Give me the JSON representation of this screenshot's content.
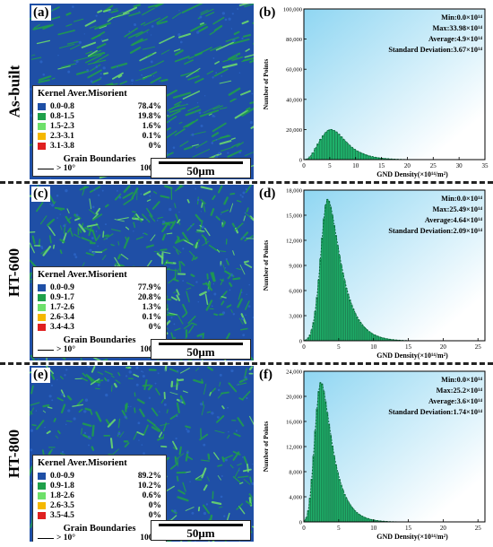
{
  "rows": [
    {
      "label": "As-built",
      "map_letter": "(a)",
      "chart_letter": "(b)",
      "legend": {
        "title": "Kernel Aver.Misorient",
        "items": [
          {
            "range": "0.0-0.8",
            "pct": "78.4%",
            "color": "#1f4fa6"
          },
          {
            "range": "0.8-1.5",
            "pct": "19.8%",
            "color": "#1fa04a"
          },
          {
            "range": "1.5-2.3",
            "pct": "1.6%",
            "color": "#6ee06a"
          },
          {
            "range": "2.3-3.1",
            "pct": "0.1%",
            "color": "#f5b800"
          },
          {
            "range": "3.1-3.8",
            "pct": "0%",
            "color": "#e02020"
          }
        ],
        "gb_title": "Grain Boundaries",
        "gb_item": "> 10°",
        "gb_pct": "100%"
      },
      "scale_label": "50μm",
      "stats": [
        "Min:0.0×10¹⁴",
        "Max:33.98×10¹⁴",
        "Average:4.9×10¹⁴",
        "Standard Deviation:3.67×10¹⁴"
      ]
    },
    {
      "label": "HT-600",
      "map_letter": "(c)",
      "chart_letter": "(d)",
      "legend": {
        "title": "Kernel Aver.Misorient",
        "items": [
          {
            "range": "0.0-0.9",
            "pct": "77.9%",
            "color": "#1f4fa6"
          },
          {
            "range": "0.9-1.7",
            "pct": "20.8%",
            "color": "#1fa04a"
          },
          {
            "range": "1.7-2.6",
            "pct": "1.3%",
            "color": "#6ee06a"
          },
          {
            "range": "2.6-3.4",
            "pct": "0.1%",
            "color": "#f5b800"
          },
          {
            "range": "3.4-4.3",
            "pct": "0%",
            "color": "#e02020"
          }
        ],
        "gb_title": "Grain Boundaries",
        "gb_item": "> 10°",
        "gb_pct": "100%"
      },
      "scale_label": "50μm",
      "stats": [
        "Min:0.0×10¹⁴",
        "Max:25.49×10¹⁴",
        "Average:4.64×10¹⁴",
        "Standard Deviation:2.09×10¹⁴"
      ]
    },
    {
      "label": "HT-800",
      "map_letter": "(e)",
      "chart_letter": "(f)",
      "legend": {
        "title": "Kernel Aver.Misorient",
        "items": [
          {
            "range": "0.0-0.9",
            "pct": "89.2%",
            "color": "#1f4fa6"
          },
          {
            "range": "0.9-1.8",
            "pct": "10.2%",
            "color": "#1fa04a"
          },
          {
            "range": "1.8-2.6",
            "pct": "0.6%",
            "color": "#6ee06a"
          },
          {
            "range": "2.6-3.5",
            "pct": "0%",
            "color": "#f5b800"
          },
          {
            "range": "3.5-4.5",
            "pct": "0%",
            "color": "#e02020"
          }
        ],
        "gb_title": "Grain Boundaries",
        "gb_item": "> 10°",
        "gb_pct": "100%"
      },
      "scale_label": "50μm",
      "stats": [
        "Min:0.0×10¹⁴",
        "Max:25.2×10¹⁴",
        "Average:3.6×10¹⁴",
        "Standard Deviation:1.74×10¹⁴"
      ]
    }
  ],
  "colors": {
    "bar_fill": "#1fb06a",
    "bar_stroke": "#0b5a33",
    "plot_bg_top": "#8fd6f2",
    "plot_bg_bottom": "#ffffff"
  },
  "chart_data": [
    {
      "type": "bar",
      "xlabel": "GND Density(×10¹⁴/m²)",
      "ylabel": "Number of Points",
      "xlim": [
        0,
        35
      ],
      "ylim": [
        0,
        100000
      ],
      "xticks": [
        0,
        5,
        10,
        15,
        20,
        25,
        30,
        35
      ],
      "yticks": [
        0,
        20000,
        40000,
        60000,
        80000,
        100000
      ],
      "ytick_labels": [
        "0",
        "20,000",
        "40,000",
        "60,000",
        "80,000",
        "100,000"
      ],
      "bin_width": 0.5,
      "x": [
        0.25,
        0.75,
        1.25,
        1.75,
        2.25,
        2.75,
        3.25,
        3.75,
        4.25,
        4.75,
        5.25,
        5.75,
        6.25,
        6.75,
        7.25,
        7.75,
        8.25,
        8.75,
        9.25,
        9.75,
        10.25,
        10.75,
        11.25,
        11.75,
        12.25,
        12.75,
        13.25,
        13.75,
        14.25,
        14.75,
        15.25,
        15.75,
        16.25,
        16.75,
        17.25,
        17.75,
        18.25,
        18.75,
        19.25,
        19.75
      ],
      "values": [
        100,
        600,
        2000,
        4500,
        7500,
        10500,
        13500,
        16000,
        18000,
        19500,
        20000,
        19500,
        18500,
        17000,
        15200,
        13300,
        11500,
        9800,
        8300,
        7000,
        5900,
        5000,
        4200,
        3500,
        2900,
        2400,
        2000,
        1650,
        1350,
        1100,
        900,
        720,
        580,
        460,
        360,
        280,
        210,
        160,
        120,
        90
      ]
    },
    {
      "type": "bar",
      "xlabel": "GND Density(×10¹⁴/m²)",
      "ylabel": "Number of Points",
      "xlim": [
        0,
        26
      ],
      "ylim": [
        0,
        18000
      ],
      "xticks": [
        0,
        5,
        10,
        15,
        20,
        25
      ],
      "yticks": [
        0,
        3000,
        6000,
        9000,
        12000,
        15000,
        18000
      ],
      "ytick_labels": [
        "0",
        "3,000",
        "6,000",
        "9,000",
        "12,000",
        "15,000",
        "18,000"
      ],
      "bin_width": 0.25,
      "x": [
        0.125,
        0.375,
        0.625,
        0.875,
        1.125,
        1.375,
        1.625,
        1.875,
        2.125,
        2.375,
        2.625,
        2.875,
        3.125,
        3.375,
        3.625,
        3.875,
        4.125,
        4.375,
        4.625,
        4.875,
        5.125,
        5.375,
        5.625,
        5.875,
        6.125,
        6.375,
        6.625,
        6.875,
        7.125,
        7.375,
        7.625,
        7.875,
        8.125,
        8.375,
        8.625,
        8.875,
        9.125,
        9.375,
        9.625,
        9.875,
        10.125,
        10.375,
        10.625,
        10.875,
        11.125,
        11.375,
        11.625,
        11.875,
        12.125,
        12.375,
        12.625,
        12.875,
        13.125,
        13.375,
        13.625,
        13.875,
        14.125,
        14.375,
        14.625,
        14.875
      ],
      "values": [
        50,
        150,
        350,
        700,
        1300,
        2200,
        3500,
        5200,
        7300,
        9800,
        12300,
        14600,
        16200,
        16900,
        16700,
        16000,
        15000,
        13800,
        12600,
        11400,
        10200,
        9100,
        8100,
        7200,
        6300,
        5600,
        4900,
        4300,
        3800,
        3300,
        2900,
        2550,
        2250,
        1950,
        1700,
        1480,
        1290,
        1120,
        970,
        840,
        730,
        630,
        550,
        470,
        400,
        345,
        295,
        250,
        215,
        180,
        150,
        125,
        105,
        88,
        72,
        60,
        48,
        38,
        30,
        22
      ]
    },
    {
      "type": "bar",
      "xlabel": "GND Density(×10¹⁴/m²)",
      "ylabel": "Number of Points",
      "xlim": [
        0,
        26
      ],
      "ylim": [
        0,
        24000
      ],
      "xticks": [
        0,
        5,
        10,
        15,
        20,
        25
      ],
      "yticks": [
        0,
        4000,
        8000,
        12000,
        16000,
        20000,
        24000
      ],
      "ytick_labels": [
        "0",
        "4,000",
        "8,000",
        "12,000",
        "16,000",
        "20,000",
        "24,000"
      ],
      "bin_width": 0.25,
      "x": [
        0.125,
        0.375,
        0.625,
        0.875,
        1.125,
        1.375,
        1.625,
        1.875,
        2.125,
        2.375,
        2.625,
        2.875,
        3.125,
        3.375,
        3.625,
        3.875,
        4.125,
        4.375,
        4.625,
        4.875,
        5.125,
        5.375,
        5.625,
        5.875,
        6.125,
        6.375,
        6.625,
        6.875,
        7.125,
        7.375,
        7.625,
        7.875,
        8.125,
        8.375,
        8.625,
        8.875,
        9.125,
        9.375,
        9.625,
        9.875,
        10.125,
        10.375,
        10.625,
        10.875,
        11.125,
        11.375,
        11.625,
        11.875,
        12.125,
        12.375,
        12.625,
        12.875,
        13.125,
        13.375,
        13.625,
        13.875
      ],
      "values": [
        200,
        700,
        1800,
        3800,
        6800,
        10500,
        14500,
        18000,
        20800,
        22200,
        22000,
        20800,
        19200,
        17400,
        15600,
        13800,
        12100,
        10500,
        9100,
        7900,
        6800,
        5900,
        5100,
        4400,
        3800,
        3250,
        2800,
        2400,
        2050,
        1750,
        1500,
        1280,
        1090,
        930,
        790,
        670,
        570,
        480,
        405,
        340,
        285,
        240,
        200,
        165,
        135,
        110,
        90,
        72,
        58,
        46,
        36,
        28,
        22,
        16,
        12,
        8
      ]
    }
  ]
}
